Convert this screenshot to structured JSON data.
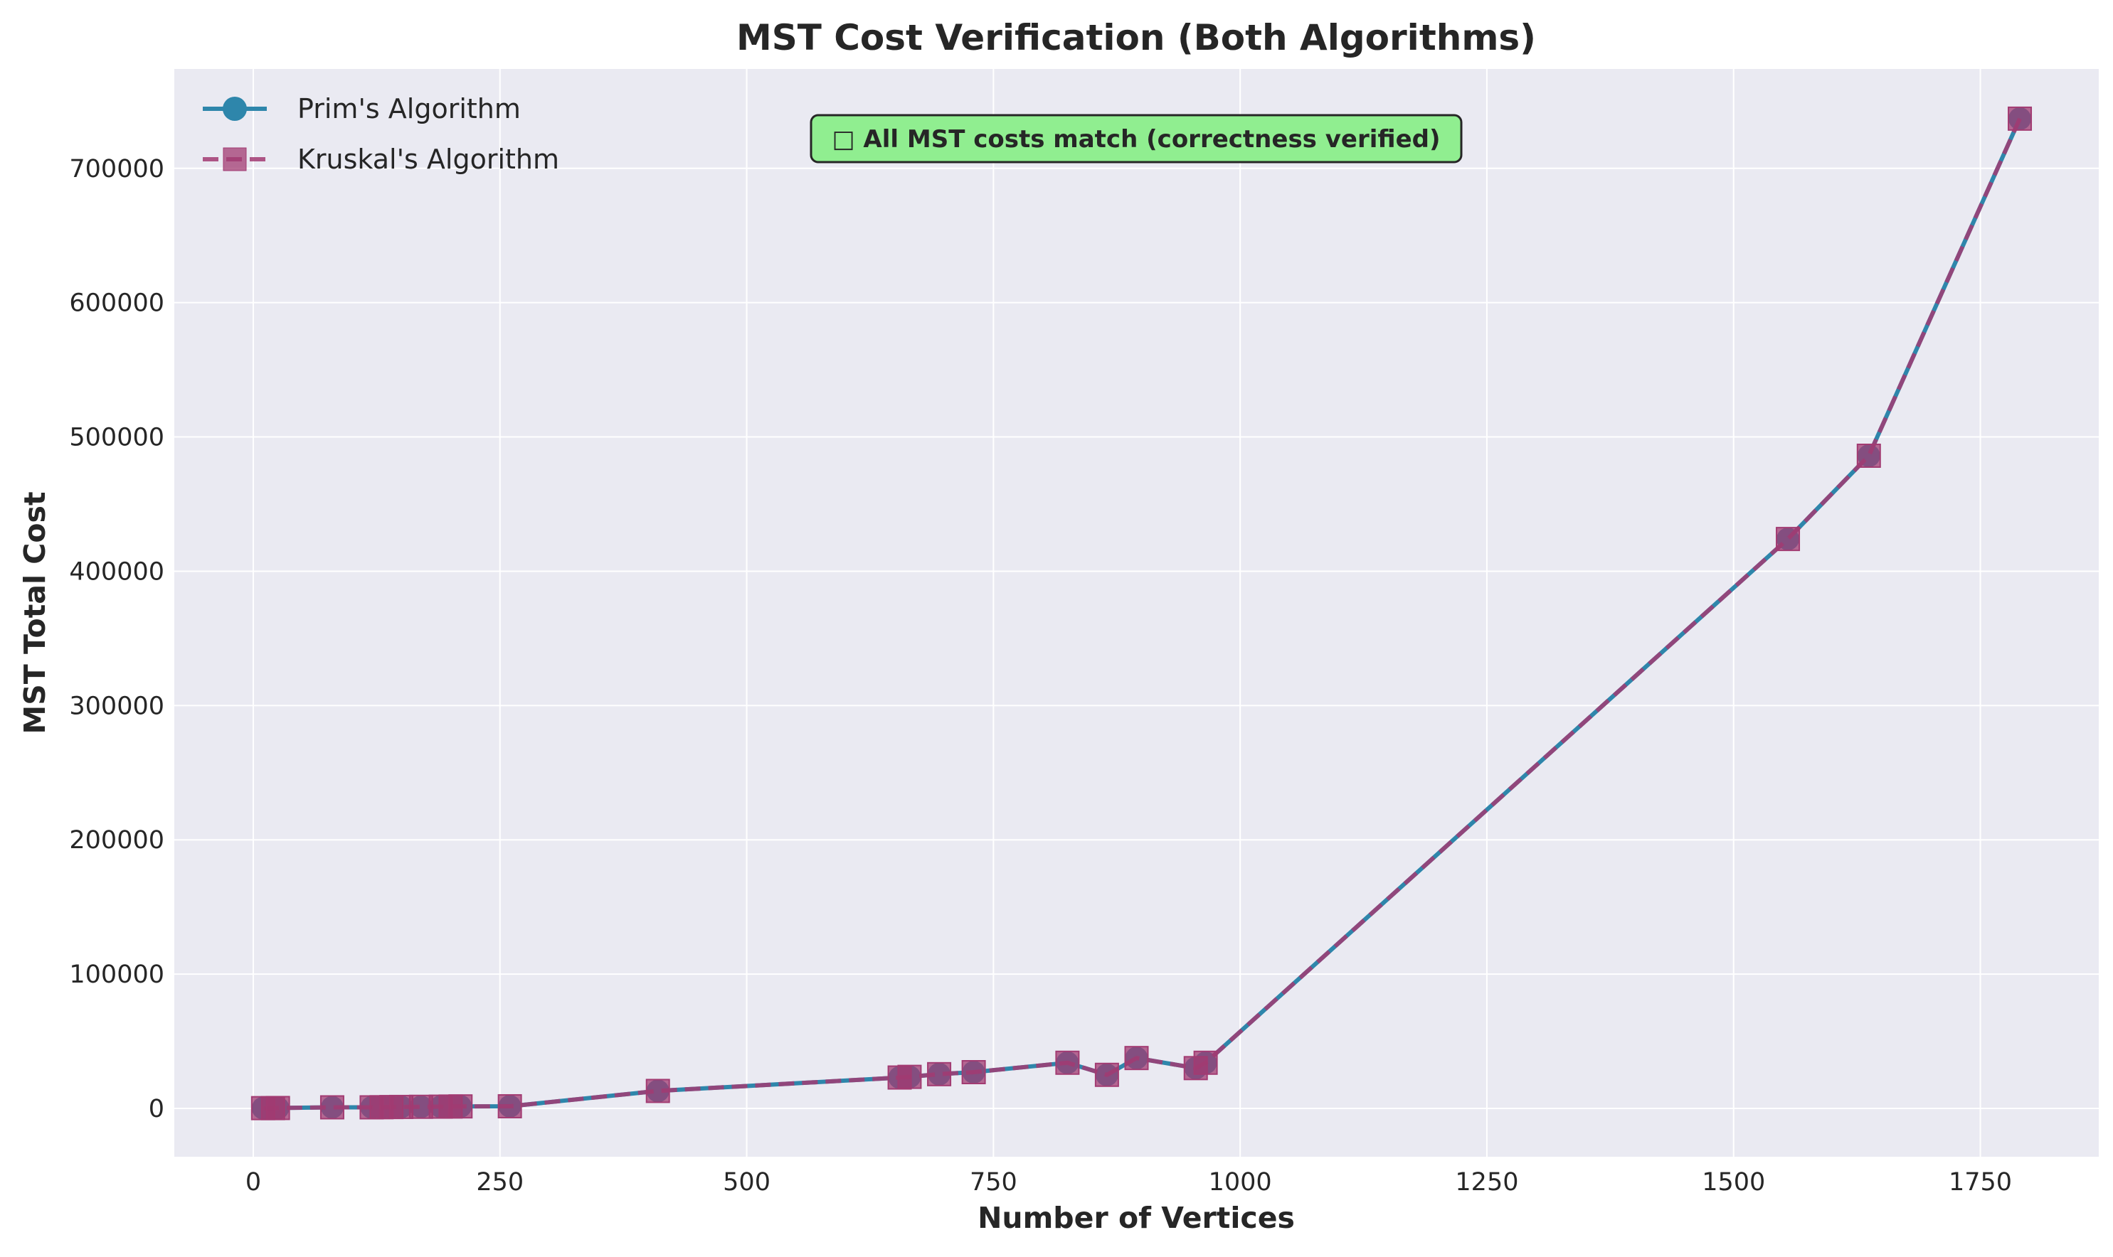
{
  "chart_data": {
    "type": "line",
    "title": "MST Cost Verification (Both Algorithms)",
    "xlabel": "Number of Vertices",
    "ylabel": "MST Total Cost",
    "xlim": [
      -80,
      1870
    ],
    "ylim": [
      -36000,
      774000
    ],
    "xticks": [
      0,
      250,
      500,
      750,
      1000,
      1250,
      1500,
      1750
    ],
    "yticks": [
      0,
      100000,
      200000,
      300000,
      400000,
      500000,
      600000,
      700000
    ],
    "grid": true,
    "legend_position": "top-left",
    "annotation": "□ All MST costs match (correctness verified)",
    "series": [
      {
        "name": "Prim's Algorithm",
        "color": "#2e86ab",
        "marker": "circle",
        "line_style": "solid",
        "x": [
          10,
          20,
          25,
          80,
          120,
          130,
          140,
          150,
          170,
          190,
          200,
          210,
          260,
          410,
          655,
          665,
          695,
          730,
          825,
          865,
          895,
          955,
          965,
          1555,
          1637,
          1790
        ],
        "y": [
          200,
          200,
          300,
          800,
          800,
          900,
          1000,
          1100,
          1200,
          1300,
          1400,
          1500,
          1600,
          13000,
          23000,
          23500,
          25500,
          27000,
          34000,
          25000,
          37500,
          30000,
          34000,
          424000,
          486000,
          737000
        ]
      },
      {
        "name": "Kruskal's Algorithm",
        "color": "#a23b72",
        "marker": "square",
        "line_style": "dashed",
        "x": [
          10,
          20,
          25,
          80,
          120,
          130,
          140,
          150,
          170,
          190,
          200,
          210,
          260,
          410,
          655,
          665,
          695,
          730,
          825,
          865,
          895,
          955,
          965,
          1555,
          1637,
          1790
        ],
        "y": [
          200,
          200,
          300,
          800,
          800,
          900,
          1000,
          1100,
          1200,
          1300,
          1400,
          1500,
          1600,
          13000,
          23000,
          23500,
          25500,
          27000,
          34000,
          25000,
          37500,
          30000,
          34000,
          424000,
          486000,
          737000
        ]
      }
    ],
    "colors": {
      "plot_background": "#eaeaf2",
      "grid": "#ffffff",
      "annotation_fill": "#90ee90",
      "annotation_border": "#262626"
    }
  }
}
